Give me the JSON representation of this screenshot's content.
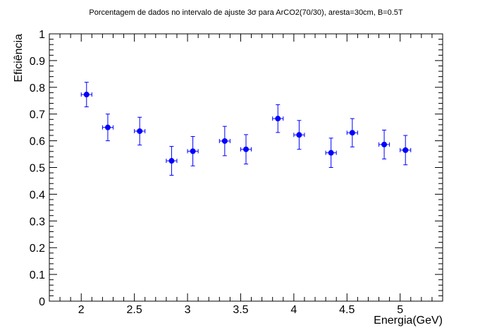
{
  "chart_data": {
    "type": "scatter",
    "title": "Porcentagem de dados no intervalo de ajuste 3σ para ArCO2(70/30), aresta=30cm, B=0.5T",
    "xlabel": "Energia(GeV)",
    "ylabel": "Eficiência",
    "xlim": [
      1.7,
      5.4
    ],
    "ylim": [
      0,
      1
    ],
    "x_ticks": [
      "2",
      "2.5",
      "3",
      "3.5",
      "4",
      "4.5",
      "5"
    ],
    "y_ticks": [
      "0",
      "0.1",
      "0.2",
      "0.3",
      "0.4",
      "0.5",
      "0.6",
      "0.7",
      "0.8",
      "0.9",
      "1"
    ],
    "grid": false,
    "marker_color": "#0000ff",
    "points": [
      {
        "x": 2.05,
        "y": 0.773,
        "y_err": 0.046,
        "x_err": 0.05
      },
      {
        "x": 2.25,
        "y": 0.65,
        "y_err": 0.05,
        "x_err": 0.05
      },
      {
        "x": 2.55,
        "y": 0.636,
        "y_err": 0.052,
        "x_err": 0.05
      },
      {
        "x": 2.85,
        "y": 0.525,
        "y_err": 0.054,
        "x_err": 0.05
      },
      {
        "x": 3.05,
        "y": 0.561,
        "y_err": 0.055,
        "x_err": 0.05
      },
      {
        "x": 3.35,
        "y": 0.599,
        "y_err": 0.055,
        "x_err": 0.05
      },
      {
        "x": 3.55,
        "y": 0.568,
        "y_err": 0.055,
        "x_err": 0.05
      },
      {
        "x": 3.85,
        "y": 0.683,
        "y_err": 0.052,
        "x_err": 0.05
      },
      {
        "x": 4.05,
        "y": 0.622,
        "y_err": 0.054,
        "x_err": 0.05
      },
      {
        "x": 4.35,
        "y": 0.555,
        "y_err": 0.055,
        "x_err": 0.05
      },
      {
        "x": 4.55,
        "y": 0.63,
        "y_err": 0.053,
        "x_err": 0.05
      },
      {
        "x": 4.85,
        "y": 0.586,
        "y_err": 0.054,
        "x_err": 0.05
      },
      {
        "x": 5.05,
        "y": 0.565,
        "y_err": 0.055,
        "x_err": 0.05
      }
    ]
  }
}
